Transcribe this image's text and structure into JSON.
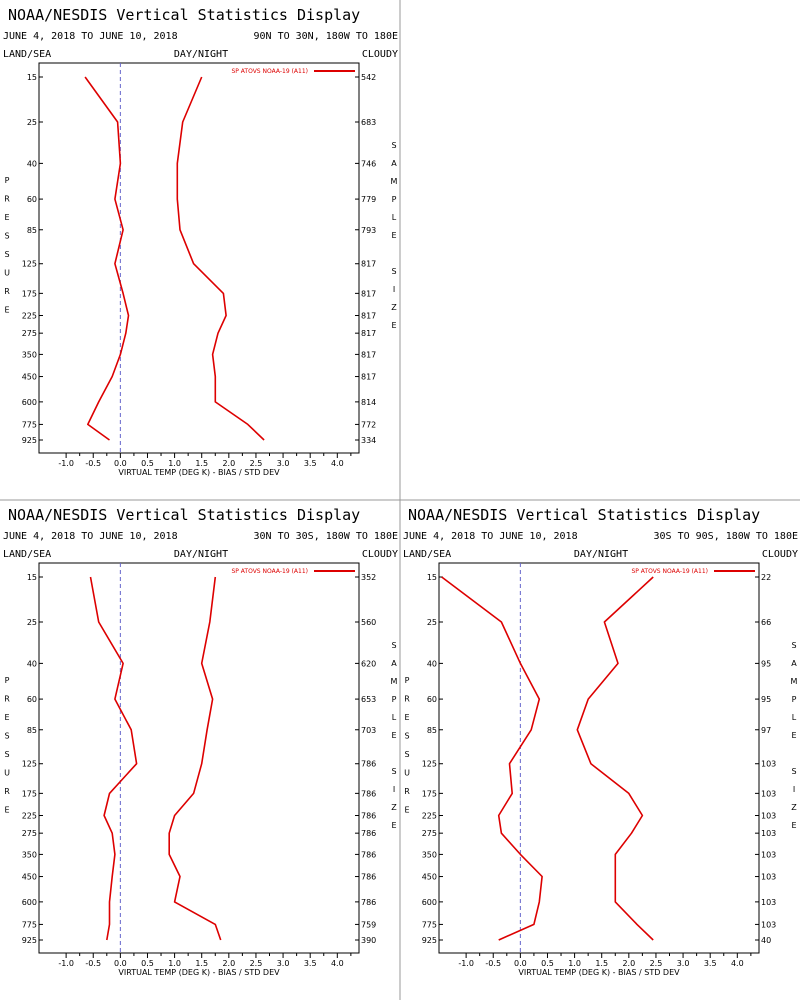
{
  "colors": {
    "series": "#dd0000",
    "zero_line": "#6666cc",
    "divider": "#999999"
  },
  "header": {
    "title": "NOAA/NESDIS Vertical Statistics Display",
    "date_range": "JUNE 4, 2018 TO JUNE 10, 2018",
    "land_sea": "LAND/SEA",
    "day_night": "DAY/NIGHT",
    "cloudy": "CLOUDY"
  },
  "side_labels": {
    "pressure": "PRESSURE",
    "sample_size": "SAMPLE SIZE"
  },
  "xlabel": "VIRTUAL TEMP (DEG K) - BIAS / STD DEV",
  "legend": "SP ATOVS NOAA-19 (A11)",
  "pressure_levels": [
    15,
    25,
    40,
    60,
    85,
    125,
    175,
    225,
    275,
    350,
    450,
    600,
    775,
    925
  ],
  "x_ticks": [
    "-1.0",
    "-0.5",
    "0.0",
    "0.5",
    "1.0",
    "1.5",
    "2.0",
    "2.5",
    "3.0",
    "3.5",
    "4.0"
  ],
  "chart_data": [
    {
      "type": "line",
      "region": "90N TO 30N, 180W TO 180E",
      "y_label": "Pressure",
      "x_label": "VIRTUAL TEMP (DEG K) - BIAS / STD DEV",
      "xlim": [
        -1.5,
        4.4
      ],
      "y_scale": "log",
      "y_inverted": true,
      "pressure": [
        15,
        25,
        40,
        60,
        85,
        125,
        175,
        225,
        275,
        350,
        450,
        600,
        775,
        925
      ],
      "sample_size": [
        "542",
        "683",
        "746",
        "779",
        "793",
        "817",
        "817",
        "817",
        "817",
        "817",
        "817",
        "814",
        "772",
        "334"
      ],
      "series": [
        {
          "name": "bias",
          "values": [
            -0.65,
            -0.05,
            0.0,
            -0.1,
            0.05,
            -0.1,
            0.05,
            0.15,
            0.1,
            0.0,
            -0.15,
            -0.4,
            -0.6,
            -0.2
          ]
        },
        {
          "name": "std_dev",
          "values": [
            1.5,
            1.15,
            1.05,
            1.05,
            1.1,
            1.35,
            1.9,
            1.95,
            1.8,
            1.7,
            1.75,
            1.75,
            2.35,
            2.65
          ]
        }
      ]
    },
    {
      "type": "line",
      "region": "30N TO 30S, 180W TO 180E",
      "y_label": "Pressure",
      "x_label": "VIRTUAL TEMP (DEG K) - BIAS / STD DEV",
      "xlim": [
        -1.5,
        4.4
      ],
      "y_scale": "log",
      "y_inverted": true,
      "pressure": [
        15,
        25,
        40,
        60,
        85,
        125,
        175,
        225,
        275,
        350,
        450,
        600,
        775,
        925
      ],
      "sample_size": [
        "352",
        "560",
        "620",
        "653",
        "703",
        "786",
        "786",
        "786",
        "786",
        "786",
        "786",
        "786",
        "759",
        "390"
      ],
      "series": [
        {
          "name": "bias",
          "values": [
            -0.55,
            -0.4,
            0.05,
            -0.1,
            0.2,
            0.3,
            -0.2,
            -0.3,
            -0.15,
            -0.1,
            -0.15,
            -0.2,
            -0.2,
            -0.25
          ]
        },
        {
          "name": "std_dev",
          "values": [
            1.75,
            1.65,
            1.5,
            1.7,
            1.6,
            1.5,
            1.35,
            1.0,
            0.9,
            0.9,
            1.1,
            1.0,
            1.75,
            1.85
          ]
        }
      ]
    },
    {
      "type": "line",
      "region": "30S TO 90S, 180W TO 180E",
      "y_label": "Pressure",
      "x_label": "VIRTUAL TEMP (DEG K) - BIAS / STD DEV",
      "xlim": [
        -1.5,
        4.4
      ],
      "y_scale": "log",
      "y_inverted": true,
      "pressure": [
        15,
        25,
        40,
        60,
        85,
        125,
        175,
        225,
        275,
        350,
        450,
        600,
        775,
        925
      ],
      "sample_size": [
        "22",
        "66",
        "95",
        "95",
        "97",
        "103",
        "103",
        "103",
        "103",
        "103",
        "103",
        "103",
        "103",
        "40"
      ],
      "series": [
        {
          "name": "bias",
          "values": [
            -1.45,
            -0.35,
            0.0,
            0.35,
            0.2,
            -0.2,
            -0.15,
            -0.4,
            -0.35,
            0.0,
            0.4,
            0.35,
            0.25,
            -0.4
          ]
        },
        {
          "name": "std_dev",
          "values": [
            2.45,
            1.55,
            1.8,
            1.25,
            1.05,
            1.3,
            2.0,
            2.25,
            2.05,
            1.75,
            1.75,
            1.75,
            2.15,
            2.45
          ]
        }
      ]
    }
  ]
}
